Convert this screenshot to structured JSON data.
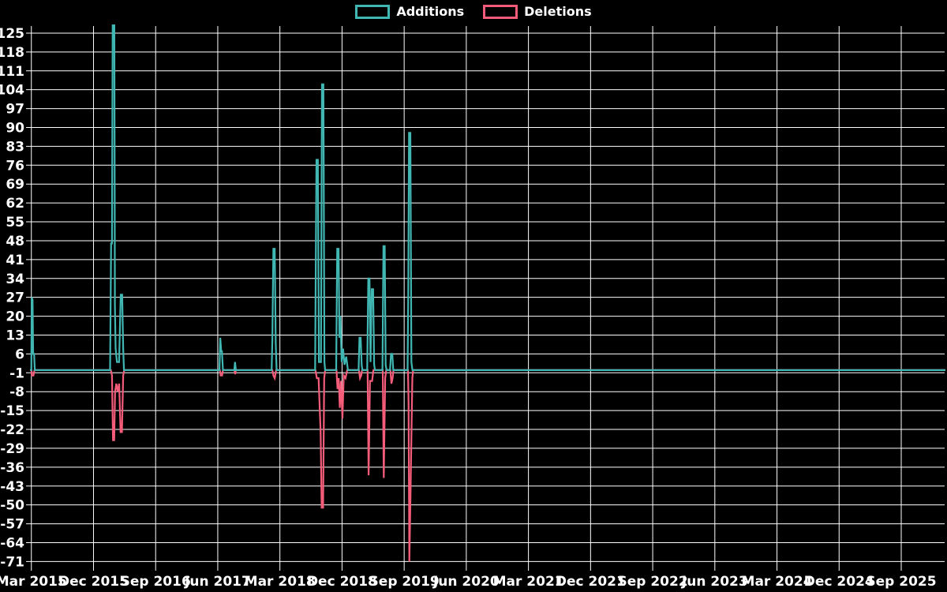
{
  "legend": {
    "additions_label": "Additions",
    "deletions_label": "Deletions"
  },
  "colors": {
    "background": "#000000",
    "grid": "#ffffff",
    "text": "#ffffff",
    "additions": "#40b7b3",
    "deletions": "#f55c7a"
  },
  "chart_data": {
    "type": "line",
    "title": "",
    "legend_position": "top-center",
    "grid": true,
    "x_unit": "months_since_first_tick",
    "xlim": [
      -0.2,
      132.4
    ],
    "ylim": [
      -74.4,
      128.5
    ],
    "yticks": [
      -71,
      -64,
      -57,
      -50,
      -43,
      -36,
      -29,
      -22,
      -15,
      -8,
      -1,
      6,
      13,
      20,
      27,
      34,
      41,
      48,
      55,
      62,
      69,
      76,
      83,
      90,
      97,
      104,
      111,
      118,
      125
    ],
    "xticks": [
      {
        "m": 0,
        "label": "Mar 2015"
      },
      {
        "m": 9,
        "label": "Dec 2015"
      },
      {
        "m": 18,
        "label": "Sep 2016"
      },
      {
        "m": 27,
        "label": "Jun 2017"
      },
      {
        "m": 36,
        "label": "Mar 2018"
      },
      {
        "m": 45,
        "label": "Dec 2018"
      },
      {
        "m": 54,
        "label": "Sep 2019"
      },
      {
        "m": 63,
        "label": "Jun 2020"
      },
      {
        "m": 72,
        "label": "Mar 2021"
      },
      {
        "m": 81,
        "label": "Dec 2021"
      },
      {
        "m": 90,
        "label": "Sep 2022"
      },
      {
        "m": 99,
        "label": "Jun 2023"
      },
      {
        "m": 108,
        "label": "Mar 2024"
      },
      {
        "m": 117,
        "label": "Dec 2024"
      },
      {
        "m": 126,
        "label": "Sep 2025"
      }
    ],
    "series": [
      {
        "name": "Deletions",
        "color": "#f55c7a",
        "points": [
          [
            -0.2,
            0
          ],
          [
            0.02,
            0
          ],
          [
            0.08,
            -2
          ],
          [
            0.3,
            -2
          ],
          [
            0.45,
            0
          ],
          [
            11.5,
            0
          ],
          [
            11.68,
            -2
          ],
          [
            11.82,
            -26
          ],
          [
            12.0,
            -26
          ],
          [
            12.12,
            -8
          ],
          [
            12.3,
            -5
          ],
          [
            12.5,
            -8
          ],
          [
            12.72,
            -5
          ],
          [
            12.92,
            -23
          ],
          [
            13.12,
            -23
          ],
          [
            13.3,
            -2
          ],
          [
            13.45,
            0
          ],
          [
            27.3,
            0
          ],
          [
            27.42,
            -2
          ],
          [
            27.62,
            -2
          ],
          [
            27.75,
            0
          ],
          [
            29.42,
            0
          ],
          [
            29.52,
            -1.5
          ],
          [
            29.64,
            0
          ],
          [
            34.9,
            0
          ],
          [
            35.05,
            -2
          ],
          [
            35.25,
            -3
          ],
          [
            35.45,
            0
          ],
          [
            41.15,
            0
          ],
          [
            41.35,
            -3
          ],
          [
            41.6,
            -3
          ],
          [
            41.9,
            -23
          ],
          [
            42.05,
            -51
          ],
          [
            42.25,
            -51
          ],
          [
            42.42,
            -3
          ],
          [
            42.55,
            0
          ],
          [
            44.2,
            0
          ],
          [
            44.35,
            -7
          ],
          [
            44.52,
            -3
          ],
          [
            44.68,
            -14
          ],
          [
            44.85,
            -4
          ],
          [
            45.05,
            -18
          ],
          [
            45.25,
            -2
          ],
          [
            45.5,
            -3
          ],
          [
            45.75,
            0
          ],
          [
            47.45,
            0
          ],
          [
            47.6,
            -3
          ],
          [
            47.78,
            -2
          ],
          [
            47.9,
            0
          ],
          [
            48.7,
            0
          ],
          [
            48.85,
            -39
          ],
          [
            49.05,
            -4
          ],
          [
            49.35,
            -4
          ],
          [
            49.55,
            0
          ],
          [
            50.9,
            0
          ],
          [
            51.05,
            -40
          ],
          [
            51.25,
            -3
          ],
          [
            51.4,
            0
          ],
          [
            52.0,
            0
          ],
          [
            52.15,
            -5
          ],
          [
            52.32,
            -3
          ],
          [
            52.45,
            0
          ],
          [
            54.55,
            0
          ],
          [
            54.64,
            -12
          ],
          [
            54.75,
            -71
          ],
          [
            54.92,
            -46
          ],
          [
            55.05,
            -25
          ],
          [
            55.18,
            -3
          ],
          [
            55.3,
            0
          ],
          [
            132.4,
            0
          ]
        ]
      },
      {
        "name": "Additions",
        "color": "#40b7b3",
        "points": [
          [
            -0.2,
            0
          ],
          [
            0.0,
            0
          ],
          [
            0.05,
            27
          ],
          [
            0.18,
            26
          ],
          [
            0.26,
            6
          ],
          [
            0.4,
            6
          ],
          [
            0.5,
            0
          ],
          [
            11.4,
            0
          ],
          [
            11.55,
            47
          ],
          [
            11.68,
            47
          ],
          [
            11.78,
            129
          ],
          [
            12.02,
            129
          ],
          [
            12.1,
            24
          ],
          [
            12.2,
            8
          ],
          [
            12.4,
            3
          ],
          [
            12.7,
            3
          ],
          [
            12.94,
            28
          ],
          [
            13.15,
            28
          ],
          [
            13.3,
            8
          ],
          [
            13.42,
            0
          ],
          [
            27.25,
            0
          ],
          [
            27.36,
            12
          ],
          [
            27.5,
            7
          ],
          [
            27.6,
            7
          ],
          [
            27.75,
            0
          ],
          [
            29.4,
            0
          ],
          [
            29.5,
            3
          ],
          [
            29.62,
            0
          ],
          [
            34.8,
            0
          ],
          [
            34.9,
            11
          ],
          [
            35.05,
            45
          ],
          [
            35.25,
            45
          ],
          [
            35.4,
            10
          ],
          [
            35.52,
            0
          ],
          [
            41.1,
            0
          ],
          [
            41.3,
            78
          ],
          [
            41.5,
            78
          ],
          [
            41.65,
            3
          ],
          [
            41.95,
            3
          ],
          [
            42.1,
            106
          ],
          [
            42.3,
            106
          ],
          [
            42.45,
            3
          ],
          [
            42.55,
            0
          ],
          [
            44.15,
            0
          ],
          [
            44.3,
            45
          ],
          [
            44.5,
            45
          ],
          [
            44.62,
            12
          ],
          [
            44.76,
            20
          ],
          [
            44.95,
            3
          ],
          [
            45.15,
            8
          ],
          [
            45.35,
            2
          ],
          [
            45.6,
            5
          ],
          [
            45.85,
            0
          ],
          [
            47.4,
            0
          ],
          [
            47.52,
            12
          ],
          [
            47.7,
            12
          ],
          [
            47.85,
            2
          ],
          [
            47.95,
            0
          ],
          [
            48.65,
            0
          ],
          [
            48.8,
            34
          ],
          [
            48.98,
            34
          ],
          [
            49.12,
            3
          ],
          [
            49.3,
            30
          ],
          [
            49.5,
            30
          ],
          [
            49.65,
            2
          ],
          [
            49.78,
            0
          ],
          [
            50.85,
            0
          ],
          [
            51.0,
            46
          ],
          [
            51.18,
            46
          ],
          [
            51.32,
            2
          ],
          [
            51.45,
            0
          ],
          [
            51.95,
            0
          ],
          [
            52.1,
            6
          ],
          [
            52.28,
            6
          ],
          [
            52.42,
            0
          ],
          [
            54.5,
            0
          ],
          [
            54.6,
            31
          ],
          [
            54.7,
            88
          ],
          [
            54.9,
            88
          ],
          [
            55.05,
            3
          ],
          [
            55.2,
            0
          ],
          [
            132.4,
            0
          ]
        ]
      }
    ]
  }
}
